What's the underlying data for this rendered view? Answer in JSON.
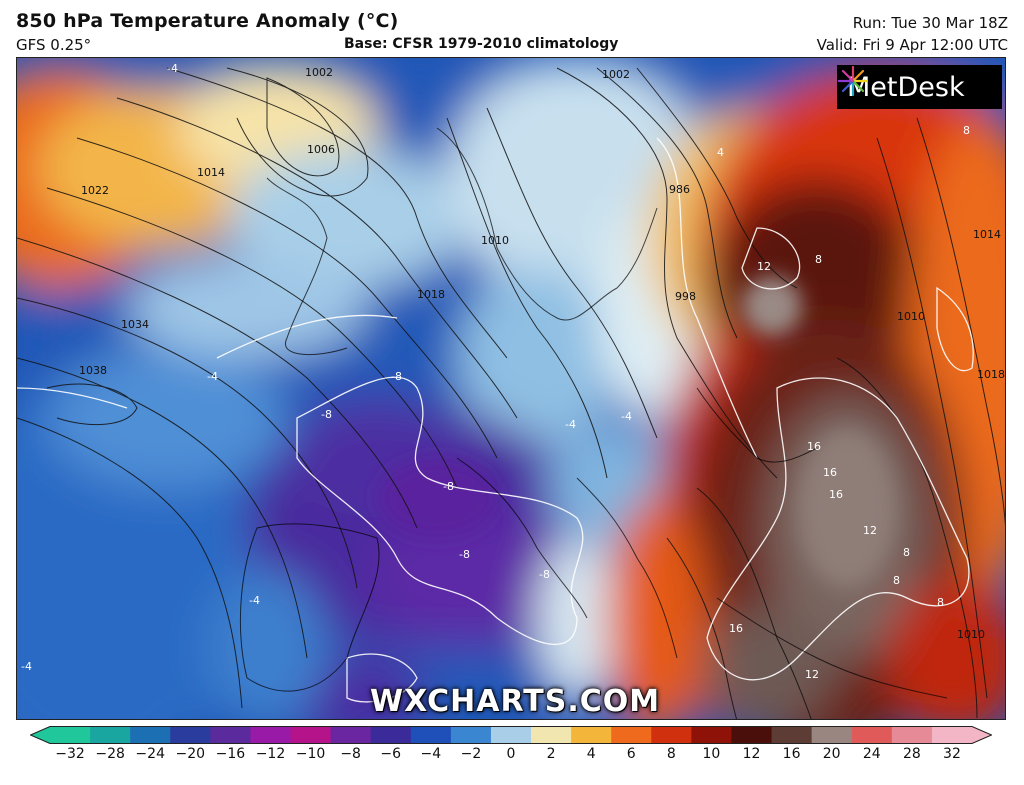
{
  "header": {
    "title": "850 hPa Temperature Anomaly (°C)",
    "model": "GFS 0.25°",
    "base": "Base: CFSR 1979-2010 climatology",
    "run": "Run: Tue 30 Mar 18Z",
    "valid": "Valid: Fri 9 Apr 12:00 UTC"
  },
  "brand": {
    "name": "MetDesk",
    "icon": "starburst-logo-icon"
  },
  "watermark": "WXCHARTS.COM",
  "map_labels": {
    "isobars": [
      "1002",
      "1006",
      "1014",
      "1022",
      "1034",
      "1038",
      "1002",
      "1010",
      "1018",
      "986",
      "998",
      "1014",
      "1010",
      "1018",
      "1010"
    ],
    "anomalies": [
      "-4",
      "-4",
      "-8",
      "-8",
      "-8",
      "-8",
      "-8",
      "-4",
      "-4",
      "4",
      "8",
      "8",
      "12",
      "16",
      "16",
      "16",
      "12",
      "8",
      "8",
      "8",
      "16",
      "12",
      "-4",
      "-4"
    ]
  },
  "colorbar": {
    "ticks": [
      "−32",
      "−28",
      "−24",
      "−20",
      "−16",
      "−12",
      "−10",
      "−8",
      "−6",
      "−4",
      "−2",
      "0",
      "2",
      "4",
      "6",
      "8",
      "10",
      "12",
      "16",
      "20",
      "24",
      "28",
      "32"
    ],
    "colors": [
      "#1fc79a",
      "#1aa6a0",
      "#1d6fb3",
      "#2a3c9e",
      "#5b2a9c",
      "#9a1aa8",
      "#b4138a",
      "#6a26a0",
      "#3b2a9a",
      "#1f4fb8",
      "#3a86d0",
      "#a9cfe8",
      "#f2e6b0",
      "#f3b63a",
      "#ef6a1d",
      "#d1300f",
      "#8e1208",
      "#4a0f0a",
      "#5e3c36",
      "#9a8680",
      "#e05a5a",
      "#e58a96",
      "#f3b6c6"
    ]
  }
}
